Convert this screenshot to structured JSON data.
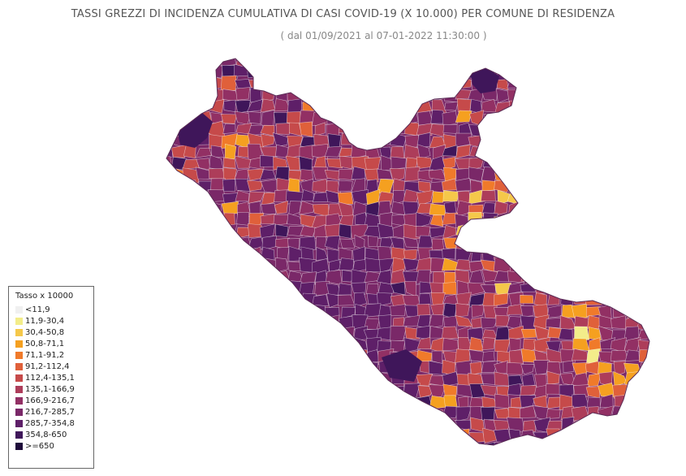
{
  "header": {
    "title": "TASSI GREZZI DI INCIDENZA CUMULATIVA DI CASI COVID-19 (X 10.000) PER COMUNE DI RESIDENZA",
    "subtitle": "( dal 01/09/2021 al 07-01-2022 11:30:00 )"
  },
  "legend": {
    "title": "Tasso x 10000",
    "items": [
      {
        "label": "<11,9",
        "color": "#f0f0f0"
      },
      {
        "label": "11,9-30,4",
        "color": "#f3ed8a"
      },
      {
        "label": "30,4-50,8",
        "color": "#f5c84a"
      },
      {
        "label": "50,8-71,1",
        "color": "#f5a020"
      },
      {
        "label": "71,1-91,2",
        "color": "#f07a2a"
      },
      {
        "label": "91,2-112,4",
        "color": "#e0603a"
      },
      {
        "label": "112,4-135,1",
        "color": "#c64a4a"
      },
      {
        "label": "135,1-166,9",
        "color": "#ad3d5a"
      },
      {
        "label": "166,9-216,7",
        "color": "#923064"
      },
      {
        "label": "216,7-285,7",
        "color": "#7a2868"
      },
      {
        "label": "285,7-354,8",
        "color": "#5e1f68"
      },
      {
        "label": "354,8-650",
        "color": "#3f165a"
      },
      {
        "label": ">=650",
        "color": "#1d0b3a"
      }
    ]
  }
}
